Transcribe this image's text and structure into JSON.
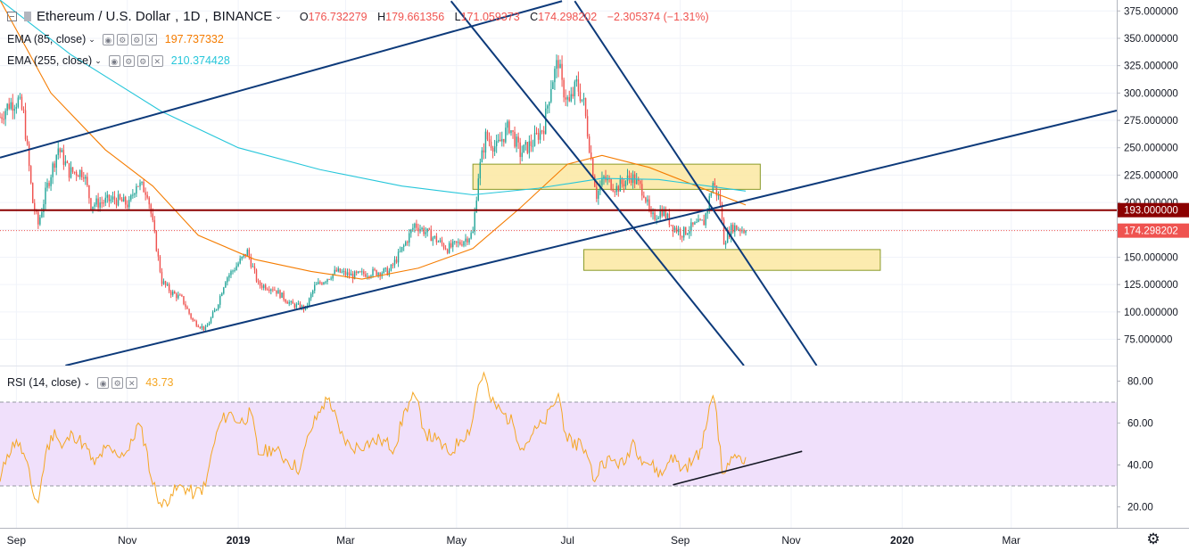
{
  "header": {
    "symbol": "Ethereum / U.S. Dollar",
    "interval": "1D",
    "exchange": "BINANCE",
    "open_label": "O",
    "open": "176.732279",
    "high_label": "H",
    "high": "179.661356",
    "low_label": "L",
    "low": "171.059373",
    "close_label": "C",
    "close": "174.298202",
    "change": "−2.305374 (−1.31%)"
  },
  "indicators": [
    {
      "label": "EMA (85, close)",
      "value": "197.737332",
      "color": "#f57c00"
    },
    {
      "label": "EMA (255, close)",
      "value": "210.374428",
      "color": "#26c6da"
    }
  ],
  "rsi_legend": {
    "label": "RSI (14, close)",
    "value": "43.73",
    "color": "#f5a623"
  },
  "colors": {
    "up": "#26a69a",
    "down": "#ef5350",
    "trendline": "#0d3a7a",
    "resistance": "#8b0000",
    "zone_fill": "#fbe7a1",
    "zone_stroke": "#8a9a28",
    "rsi_band": "#f0e0fb",
    "rsi_line": "#f5a623"
  },
  "chart_data": [
    {
      "type": "candlestick",
      "title": "Ethereum / U.S. Dollar, 1D, BINANCE",
      "x_ticks": [
        "Sep",
        "Nov",
        "2019",
        "Mar",
        "May",
        "Jul",
        "Sep",
        "Nov",
        "2020",
        "Mar"
      ],
      "x_range": [
        "2018-08-23",
        "2020-04-28"
      ],
      "y_ticks": [
        "375.000000",
        "350.000000",
        "325.000000",
        "300.000000",
        "275.000000",
        "250.000000",
        "225.000000",
        "200.000000",
        "175.000000",
        "150.000000",
        "125.000000",
        "100.000000",
        "75.000000"
      ],
      "ylim": [
        51,
        385
      ],
      "horizontal_level": {
        "value": 193,
        "label": "193.000000"
      },
      "last_price": {
        "value": 174.298202,
        "label": "174.298202"
      },
      "zones": [
        {
          "from": "2019-05-10",
          "to": "2019-10-15",
          "low": 212,
          "high": 235
        },
        {
          "from": "2019-07-10",
          "to": "2019-12-20",
          "low": 138,
          "high": 157
        }
      ],
      "trendlines": [
        {
          "x1": "2018-08-23",
          "y1": 241,
          "x2": "2019-06-28",
          "y2": 384
        },
        {
          "x1": "2018-09-28",
          "y1": 51,
          "x2": "2020-04-28",
          "y2": 284
        },
        {
          "x1": "2019-04-28",
          "y1": 384,
          "x2": "2019-10-06",
          "y2": 51
        },
        {
          "x1": "2019-07-05",
          "y1": 384,
          "x2": "2019-11-15",
          "y2": 51
        }
      ],
      "series": [
        {
          "name": "Ethereum / U.S. Dollar",
          "keypoints": [
            [
              "2018-08-23",
              278
            ],
            [
              "2018-08-28",
              290
            ],
            [
              "2018-09-02",
              293
            ],
            [
              "2018-09-05",
              280
            ],
            [
              "2018-09-10",
              200
            ],
            [
              "2018-09-13",
              180
            ],
            [
              "2018-09-18",
              215
            ],
            [
              "2018-09-24",
              250
            ],
            [
              "2018-09-30",
              228
            ],
            [
              "2018-10-08",
              228
            ],
            [
              "2018-10-12",
              198
            ],
            [
              "2018-10-25",
              203
            ],
            [
              "2018-11-02",
              198
            ],
            [
              "2018-11-06",
              218
            ],
            [
              "2018-11-12",
              210
            ],
            [
              "2018-11-15",
              180
            ],
            [
              "2018-11-20",
              128
            ],
            [
              "2018-11-25",
              118
            ],
            [
              "2018-12-01",
              112
            ],
            [
              "2018-12-07",
              92
            ],
            [
              "2018-12-14",
              84
            ],
            [
              "2018-12-20",
              104
            ],
            [
              "2018-12-25",
              130
            ],
            [
              "2018-12-30",
              140
            ],
            [
              "2019-01-06",
              155
            ],
            [
              "2019-01-12",
              125
            ],
            [
              "2019-01-20",
              122
            ],
            [
              "2019-01-30",
              107
            ],
            [
              "2019-02-07",
              103
            ],
            [
              "2019-02-12",
              123
            ],
            [
              "2019-02-24",
              137
            ],
            [
              "2019-03-05",
              133
            ],
            [
              "2019-03-15",
              136
            ],
            [
              "2019-03-25",
              137
            ],
            [
              "2019-04-02",
              160
            ],
            [
              "2019-04-08",
              180
            ],
            [
              "2019-04-15",
              172
            ],
            [
              "2019-04-26",
              158
            ],
            [
              "2019-05-03",
              163
            ],
            [
              "2019-05-10",
              172
            ],
            [
              "2019-05-13",
              225
            ],
            [
              "2019-05-17",
              260
            ],
            [
              "2019-05-23",
              250
            ],
            [
              "2019-05-30",
              270
            ],
            [
              "2019-06-05",
              245
            ],
            [
              "2019-06-12",
              255
            ],
            [
              "2019-06-18",
              270
            ],
            [
              "2019-06-22",
              308
            ],
            [
              "2019-06-26",
              330
            ],
            [
              "2019-06-28",
              306
            ],
            [
              "2019-07-02",
              290
            ],
            [
              "2019-07-06",
              308
            ],
            [
              "2019-07-10",
              290
            ],
            [
              "2019-07-14",
              240
            ],
            [
              "2019-07-17",
              207
            ],
            [
              "2019-07-21",
              222
            ],
            [
              "2019-07-28",
              213
            ],
            [
              "2019-08-05",
              224
            ],
            [
              "2019-08-12",
              210
            ],
            [
              "2019-08-16",
              185
            ],
            [
              "2019-08-22",
              193
            ],
            [
              "2019-08-28",
              178
            ],
            [
              "2019-09-02",
              172
            ],
            [
              "2019-09-08",
              178
            ],
            [
              "2019-09-14",
              182
            ],
            [
              "2019-09-19",
              218
            ],
            [
              "2019-09-23",
              200
            ],
            [
              "2019-09-25",
              165
            ],
            [
              "2019-09-30",
              178
            ],
            [
              "2019-10-04",
              176
            ],
            [
              "2019-10-07",
              174.3
            ]
          ]
        },
        {
          "name": "EMA (85, close)",
          "points": [
            [
              "2018-08-23",
              385
            ],
            [
              "2018-09-20",
              300
            ],
            [
              "2018-10-20",
              248
            ],
            [
              "2018-11-15",
              215
            ],
            [
              "2018-12-10",
              170
            ],
            [
              "2019-01-10",
              148
            ],
            [
              "2019-02-10",
              137
            ],
            [
              "2019-03-10",
              130
            ],
            [
              "2019-04-10",
              140
            ],
            [
              "2019-05-10",
              158
            ],
            [
              "2019-06-05",
              195
            ],
            [
              "2019-07-01",
              235
            ],
            [
              "2019-07-20",
              243
            ],
            [
              "2019-08-15",
              232
            ],
            [
              "2019-09-10",
              215
            ],
            [
              "2019-10-07",
              197.7
            ]
          ]
        },
        {
          "name": "EMA (255, close)",
          "points": [
            [
              "2018-08-23",
              385
            ],
            [
              "2018-10-01",
              335
            ],
            [
              "2018-11-20",
              283
            ],
            [
              "2019-01-01",
              250
            ],
            [
              "2019-02-15",
              230
            ],
            [
              "2019-04-01",
              215
            ],
            [
              "2019-05-10",
              207
            ],
            [
              "2019-06-15",
              213
            ],
            [
              "2019-07-20",
              222
            ],
            [
              "2019-08-20",
              221
            ],
            [
              "2019-10-07",
              210.4
            ]
          ]
        }
      ]
    },
    {
      "type": "line",
      "title": "RSI (14, close)",
      "y_ticks": [
        "80.00",
        "60.00",
        "40.00",
        "20.00"
      ],
      "ylim": [
        10,
        87
      ],
      "band": {
        "upper": 70,
        "lower": 30
      },
      "trendline": {
        "x1": "2019-08-28",
        "y1": 30.5,
        "x2": "2019-11-07",
        "y2": 46.5
      },
      "series": [
        {
          "name": "RSI (14, close)",
          "points": [
            [
              "2018-08-23",
              32
            ],
            [
              "2018-08-27",
              45
            ],
            [
              "2018-09-01",
              52
            ],
            [
              "2018-09-06",
              43
            ],
            [
              "2018-09-10",
              27
            ],
            [
              "2018-09-13",
              22
            ],
            [
              "2018-09-17",
              45
            ],
            [
              "2018-09-22",
              57
            ],
            [
              "2018-09-26",
              48
            ],
            [
              "2018-10-02",
              55
            ],
            [
              "2018-10-08",
              50
            ],
            [
              "2018-10-14",
              40
            ],
            [
              "2018-10-20",
              48
            ],
            [
              "2018-10-26",
              45
            ],
            [
              "2018-11-02",
              47
            ],
            [
              "2018-11-07",
              60
            ],
            [
              "2018-11-11",
              50
            ],
            [
              "2018-11-14",
              34
            ],
            [
              "2018-11-20",
              20
            ],
            [
              "2018-11-25",
              26
            ],
            [
              "2018-12-01",
              30
            ],
            [
              "2018-12-08",
              26
            ],
            [
              "2018-12-14",
              30
            ],
            [
              "2018-12-18",
              48
            ],
            [
              "2018-12-22",
              60
            ],
            [
              "2018-12-27",
              65
            ],
            [
              "2019-01-02",
              60
            ],
            [
              "2019-01-08",
              65
            ],
            [
              "2019-01-12",
              45
            ],
            [
              "2019-01-20",
              48
            ],
            [
              "2019-01-28",
              42
            ],
            [
              "2019-02-04",
              38
            ],
            [
              "2019-02-09",
              55
            ],
            [
              "2019-02-16",
              68
            ],
            [
              "2019-02-20",
              72
            ],
            [
              "2019-02-26",
              55
            ],
            [
              "2019-03-04",
              48
            ],
            [
              "2019-03-12",
              50
            ],
            [
              "2019-03-20",
              52
            ],
            [
              "2019-03-28",
              48
            ],
            [
              "2019-04-03",
              67
            ],
            [
              "2019-04-08",
              73
            ],
            [
              "2019-04-14",
              55
            ],
            [
              "2019-04-20",
              52
            ],
            [
              "2019-04-27",
              45
            ],
            [
              "2019-05-03",
              52
            ],
            [
              "2019-05-09",
              58
            ],
            [
              "2019-05-13",
              78
            ],
            [
              "2019-05-16",
              84
            ],
            [
              "2019-05-20",
              70
            ],
            [
              "2019-05-26",
              65
            ],
            [
              "2019-06-01",
              60
            ],
            [
              "2019-06-06",
              48
            ],
            [
              "2019-06-12",
              55
            ],
            [
              "2019-06-18",
              60
            ],
            [
              "2019-06-23",
              68
            ],
            [
              "2019-06-26",
              74
            ],
            [
              "2019-06-30",
              55
            ],
            [
              "2019-07-04",
              48
            ],
            [
              "2019-07-08",
              52
            ],
            [
              "2019-07-12",
              44
            ],
            [
              "2019-07-16",
              32
            ],
            [
              "2019-07-20",
              42
            ],
            [
              "2019-07-26",
              42
            ],
            [
              "2019-08-01",
              40
            ],
            [
              "2019-08-06",
              52
            ],
            [
              "2019-08-10",
              44
            ],
            [
              "2019-08-16",
              40
            ],
            [
              "2019-08-22",
              35
            ],
            [
              "2019-08-27",
              45
            ],
            [
              "2019-09-02",
              38
            ],
            [
              "2019-09-08",
              42
            ],
            [
              "2019-09-13",
              48
            ],
            [
              "2019-09-17",
              68
            ],
            [
              "2019-09-19",
              73
            ],
            [
              "2019-09-21",
              65
            ],
            [
              "2019-09-24",
              36
            ],
            [
              "2019-09-28",
              40
            ],
            [
              "2019-10-01",
              45
            ],
            [
              "2019-10-04",
              44
            ],
            [
              "2019-10-07",
              43.73
            ]
          ]
        }
      ]
    }
  ]
}
